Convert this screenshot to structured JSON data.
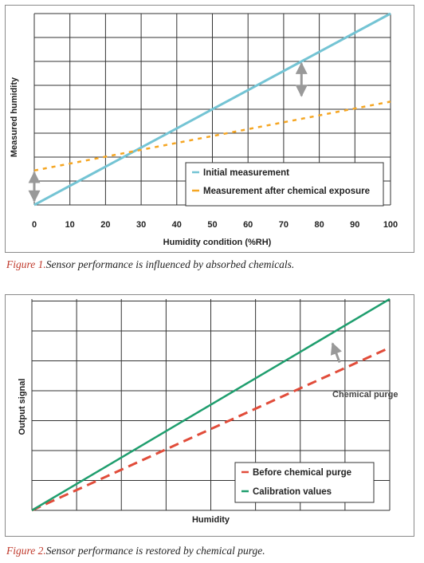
{
  "chart_data": [
    {
      "type": "line",
      "title": "",
      "xlabel": "Humidity condition (%RH)",
      "ylabel": "Measured humidity",
      "x_ticks": [
        0,
        10,
        20,
        30,
        40,
        50,
        60,
        70,
        80,
        90,
        100
      ],
      "xlim": [
        0,
        100
      ],
      "ylim": [
        0,
        100
      ],
      "grid": true,
      "legend_position": "bottom-right",
      "series": [
        {
          "name": "Initial measurement",
          "color": "#74c4d4",
          "style": "solid",
          "x": [
            0,
            100
          ],
          "y": [
            0,
            100
          ]
        },
        {
          "name": "Measurement after chemical exposure",
          "color": "#f5a623",
          "style": "dashed",
          "x": [
            0,
            100
          ],
          "y": [
            18,
            54
          ]
        }
      ],
      "annotations": [
        {
          "kind": "double-arrow",
          "x": 0,
          "y_from": 2,
          "y_to": 17
        },
        {
          "kind": "double-arrow",
          "x": 75,
          "y_from": 57,
          "y_to": 74
        }
      ]
    },
    {
      "type": "line",
      "title": "",
      "xlabel": "Humidity",
      "ylabel": "Output signal",
      "xlim": [
        0,
        100
      ],
      "ylim": [
        0,
        100
      ],
      "grid": true,
      "legend_position": "bottom-right",
      "series": [
        {
          "name": "Before chemical purge",
          "color": "#e14c3a",
          "style": "dashed",
          "x": [
            0,
            100
          ],
          "y": [
            0,
            77
          ]
        },
        {
          "name": "Calibration values",
          "color": "#1f9e6e",
          "style": "solid",
          "x": [
            0,
            100
          ],
          "y": [
            0,
            100
          ]
        }
      ],
      "annotations": [
        {
          "kind": "arrow",
          "text": "Chemical purge",
          "x_from": 86,
          "y_from": 70,
          "x_to": 84,
          "y_to": 79
        }
      ]
    }
  ],
  "captions": [
    {
      "figure": "Figure 1.",
      "text": "Sensor performance is influenced by absorbed chemicals."
    },
    {
      "figure": "Figure 2.",
      "text": "Sensor performance is restored by chemical purge."
    }
  ]
}
